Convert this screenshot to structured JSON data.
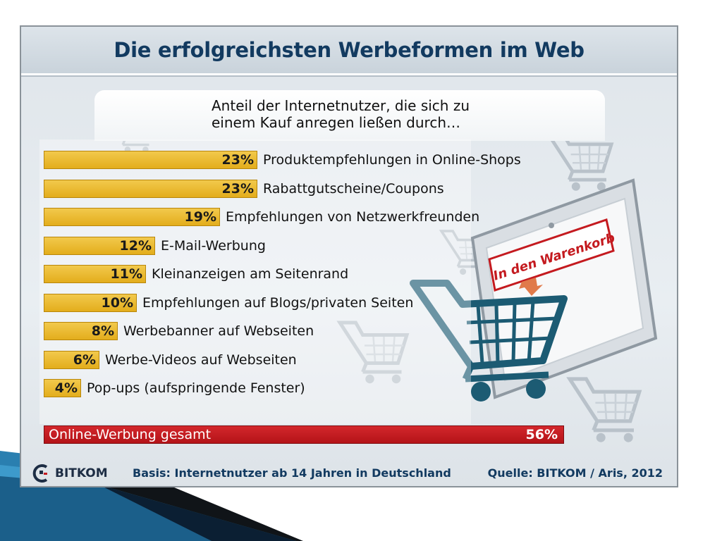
{
  "chart_data": {
    "type": "bar",
    "orientation": "horizontal",
    "title": "Die erfolgreichsten Werbeformen im Web",
    "subtitle": [
      "Anteil der Internetnutzer, die sich zu",
      "einem Kauf anregen ließen durch…"
    ],
    "categories": [
      "Produktempfehlungen in Online-Shops",
      "Rabattgutscheine/Coupons",
      "Empfehlungen von Netzwerkfreunden",
      "E-Mail-Werbung",
      "Kleinanzeigen am Seitenrand",
      "Empfehlungen auf Blogs/privaten Seiten",
      "Werbebanner auf Webseiten",
      "Werbe-Videos auf Webseiten",
      "Pop-ups (aufspringende Fenster)"
    ],
    "values": [
      23,
      23,
      19,
      12,
      11,
      10,
      8,
      6,
      4
    ],
    "value_labels": [
      "23%",
      "23%",
      "19%",
      "12%",
      "11%",
      "10%",
      "8%",
      "6%",
      "4%"
    ],
    "total": {
      "label": "Online-Werbung gesamt",
      "value": 56,
      "value_label": "56%"
    },
    "unit": "%",
    "xlim": [
      0,
      56
    ],
    "bar_color": "#e8b422",
    "total_color": "#c41a1f",
    "grid": false
  },
  "footer": {
    "logo_text": "BITKOM",
    "basis": "Basis: Internetnutzer ab 14 Jahren in Deutschland",
    "source": "Quelle: BITKOM / Aris, 2012"
  },
  "illustration": {
    "sign_text": "In den Warenkorb",
    "icon": "shopping-cart-icon"
  },
  "colors": {
    "title_text": "#123a60",
    "slide_accent": "#1f6e9c",
    "cart": "#1c5b73"
  }
}
